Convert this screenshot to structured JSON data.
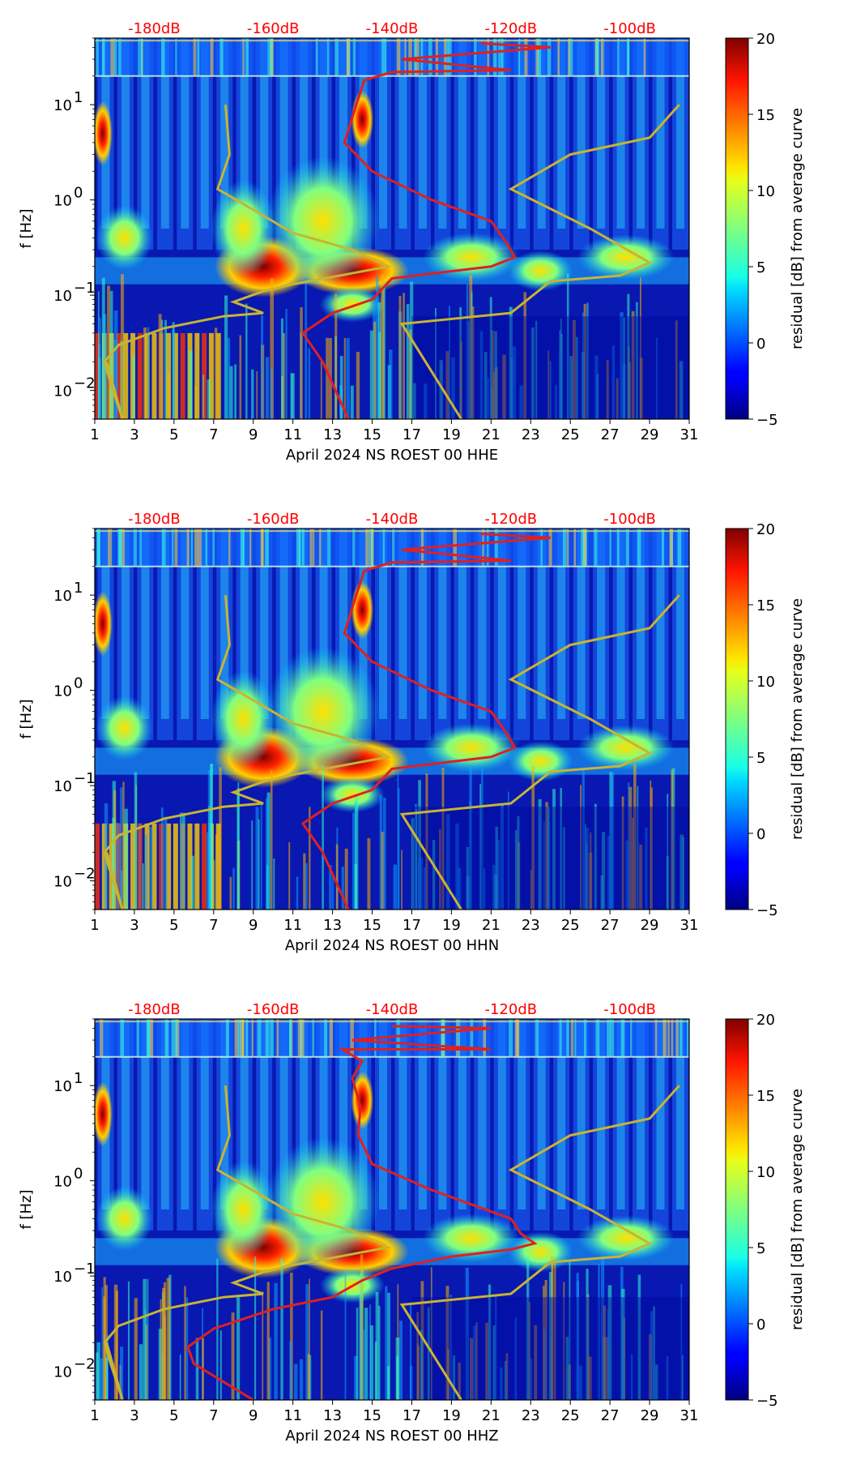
{
  "chart_data": [
    {
      "type": "heatmap",
      "xlabel": "April 2024 NS ROEST 00 HHE",
      "ylabel": "f [Hz]",
      "x_ticks": [
        "1",
        "3",
        "5",
        "7",
        "9",
        "11",
        "13",
        "15",
        "17",
        "19",
        "21",
        "23",
        "25",
        "27",
        "29",
        "31"
      ],
      "xlim": [
        1,
        31
      ],
      "y_ticks": [
        {
          "label": "10",
          "exp": "1",
          "value": 10
        },
        {
          "label": "10",
          "exp": "0",
          "value": 1
        },
        {
          "label": "10",
          "exp": "−1",
          "value": 0.1
        },
        {
          "label": "10",
          "exp": "−2",
          "value": 0.01
        }
      ],
      "ylim": [
        0.005,
        50
      ],
      "top_db_labels": [
        "-180dB",
        "-160dB",
        "-140dB",
        "-120dB",
        "-100dB"
      ],
      "colorbar": {
        "label": "residual [dB] from average curve",
        "ticks": [
          "20",
          "15",
          "10",
          "5",
          "0",
          "−5"
        ],
        "range": [
          -5,
          20
        ]
      },
      "noise_model_curves_color": "#c8b432",
      "mean_curve_color": "#e02020"
    },
    {
      "type": "heatmap",
      "xlabel": "April 2024 NS ROEST 00 HHN",
      "ylabel": "f [Hz]",
      "x_ticks": [
        "1",
        "3",
        "5",
        "7",
        "9",
        "11",
        "13",
        "15",
        "17",
        "19",
        "21",
        "23",
        "25",
        "27",
        "29",
        "31"
      ],
      "xlim": [
        1,
        31
      ],
      "y_ticks": [
        {
          "label": "10",
          "exp": "1",
          "value": 10
        },
        {
          "label": "10",
          "exp": "0",
          "value": 1
        },
        {
          "label": "10",
          "exp": "−1",
          "value": 0.1
        },
        {
          "label": "10",
          "exp": "−2",
          "value": 0.01
        }
      ],
      "ylim": [
        0.005,
        50
      ],
      "top_db_labels": [
        "-180dB",
        "-160dB",
        "-140dB",
        "-120dB",
        "-100dB"
      ],
      "colorbar": {
        "label": "residual [dB] from average curve",
        "ticks": [
          "20",
          "15",
          "10",
          "5",
          "0",
          "−5"
        ],
        "range": [
          -5,
          20
        ]
      },
      "noise_model_curves_color": "#c8b432",
      "mean_curve_color": "#e02020"
    },
    {
      "type": "heatmap",
      "xlabel": "April 2024 NS ROEST 00 HHZ",
      "ylabel": "f [Hz]",
      "x_ticks": [
        "1",
        "3",
        "5",
        "7",
        "9",
        "11",
        "13",
        "15",
        "17",
        "19",
        "21",
        "23",
        "25",
        "27",
        "29",
        "31"
      ],
      "xlim": [
        1,
        31
      ],
      "y_ticks": [
        {
          "label": "10",
          "exp": "1",
          "value": 10
        },
        {
          "label": "10",
          "exp": "0",
          "value": 1
        },
        {
          "label": "10",
          "exp": "−1",
          "value": 0.1
        },
        {
          "label": "10",
          "exp": "−2",
          "value": 0.01
        }
      ],
      "ylim": [
        0.005,
        50
      ],
      "top_db_labels": [
        "-180dB",
        "-160dB",
        "-140dB",
        "-120dB",
        "-100dB"
      ],
      "colorbar": {
        "label": "residual [dB] from average curve",
        "ticks": [
          "20",
          "15",
          "10",
          "5",
          "0",
          "−5"
        ],
        "range": [
          -5,
          20
        ]
      },
      "noise_model_curves_color": "#c8b432",
      "mean_curve_color": "#e02020"
    }
  ]
}
